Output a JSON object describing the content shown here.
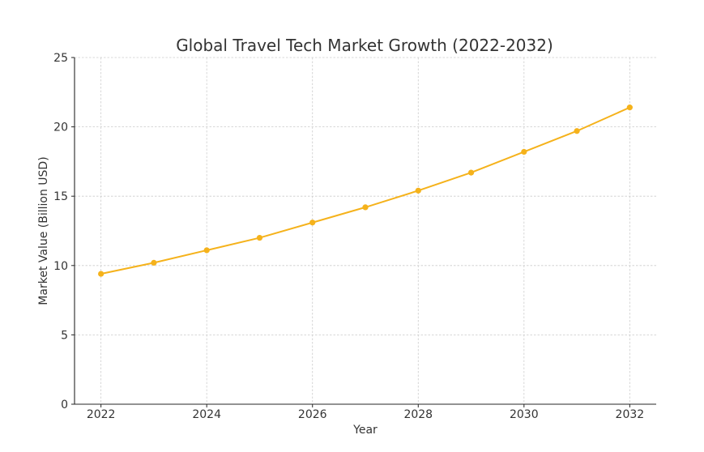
{
  "chart_data": {
    "type": "line",
    "title": "Global Travel Tech Market Growth (2022-2032)",
    "xlabel": "Year",
    "ylabel": "Market Value (Billion USD)",
    "xlim": [
      2021.5,
      2032.5
    ],
    "ylim": [
      0,
      25
    ],
    "x_ticks": [
      2022,
      2024,
      2026,
      2028,
      2030,
      2032
    ],
    "y_ticks": [
      0,
      5,
      10,
      15,
      20,
      25
    ],
    "grid": true,
    "legend": "none",
    "x": [
      2022,
      2023,
      2024,
      2025,
      2026,
      2027,
      2028,
      2029,
      2030,
      2031,
      2032
    ],
    "series": [
      {
        "color": "#f5b21b",
        "values": [
          9.4,
          10.2,
          11.1,
          12.0,
          13.1,
          14.2,
          15.4,
          16.7,
          18.2,
          19.7,
          21.4
        ]
      }
    ]
  }
}
